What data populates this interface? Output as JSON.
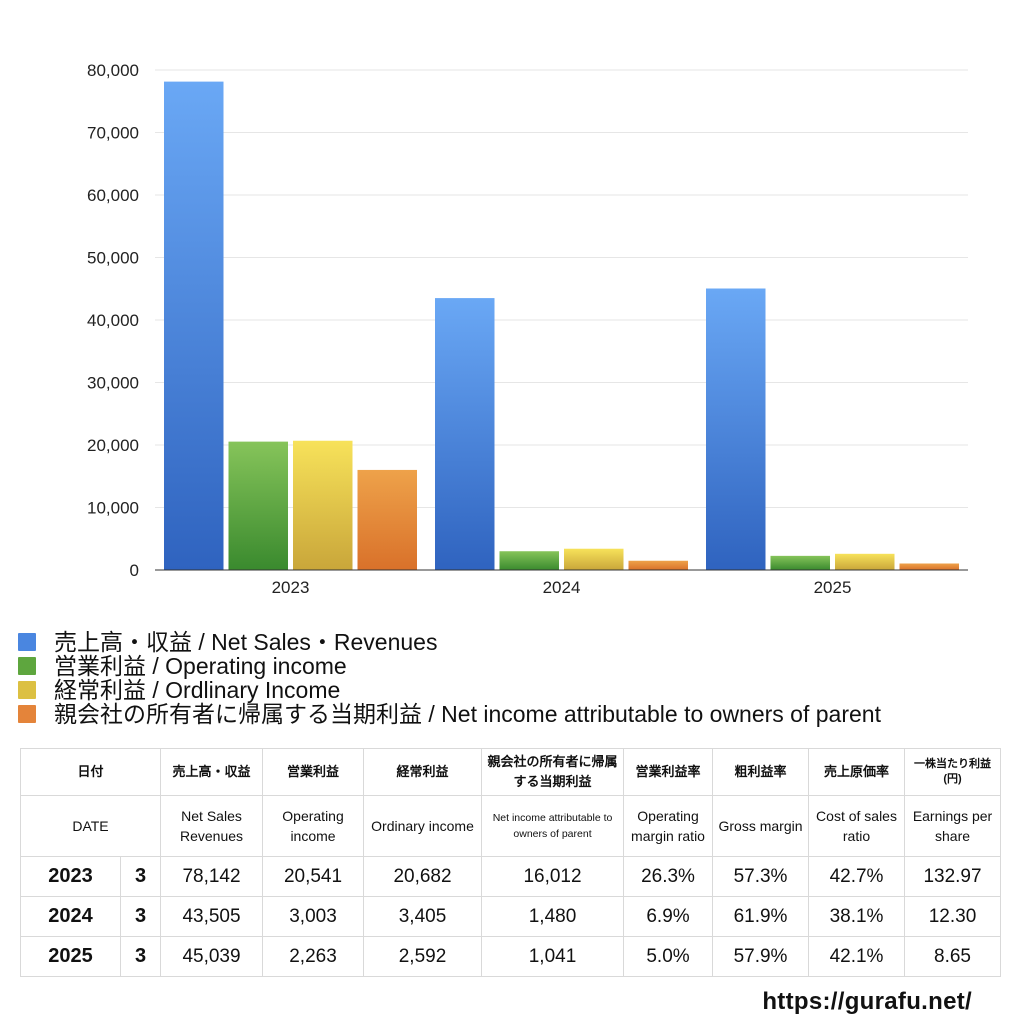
{
  "chart_data": {
    "type": "bar",
    "categories": [
      "2023",
      "2024",
      "2025"
    ],
    "series": [
      {
        "name": "売上高・収益 / Net Sales・Revenues",
        "values": [
          78142,
          43505,
          45039
        ],
        "color_top": "#6aa8f5",
        "color_bottom": "#2f63bf"
      },
      {
        "name": "営業利益 / Operating income",
        "values": [
          20541,
          3003,
          2263
        ],
        "color_top": "#86c45a",
        "color_bottom": "#3a8a2e"
      },
      {
        "name": "経常利益 / Ordlinary Income",
        "values": [
          20682,
          3405,
          2592
        ],
        "color_top": "#f7e25a",
        "color_bottom": "#c9a63a"
      },
      {
        "name": "親会社の所有者に帰属する当期利益 / Net income attributable to owners of parent",
        "values": [
          16012,
          1480,
          1041
        ],
        "color_top": "#eea24a",
        "color_bottom": "#d9712a"
      }
    ],
    "ylim": [
      0,
      80000
    ],
    "yticks": [
      0,
      10000,
      20000,
      30000,
      40000,
      50000,
      60000,
      70000,
      80000
    ],
    "ytick_labels": [
      "0",
      "10,000",
      "20,000",
      "30,000",
      "40,000",
      "50,000",
      "60,000",
      "70,000",
      "80,000"
    ],
    "grid": true,
    "legend_position": "bottom-left"
  },
  "legend": [
    {
      "label": "売上高・収益 / Net Sales・Revenues",
      "color": "#4a86e0"
    },
    {
      "label": "営業利益 / Operating income",
      "color": "#5ea63e"
    },
    {
      "label": "経常利益 / Ordlinary Income",
      "color": "#dcc042"
    },
    {
      "label": "親会社の所有者に帰属する当期利益 / Net income attributable to owners of parent",
      "color": "#e4843a"
    }
  ],
  "table": {
    "headers_ja": [
      "日付",
      "売上高・収益",
      "営業利益",
      "経常利益",
      "親会社の所有者に帰属する当期利益",
      "営業利益率",
      "粗利益率",
      "売上原価率",
      "一株当たり利益(円)"
    ],
    "headers_en": [
      "DATE",
      "Net Sales Revenues",
      "Operating income",
      "Ordinary income",
      "Net income attributable to owners of parent",
      "Operating margin ratio",
      "Gross margin",
      "Cost of sales ratio",
      "Earnings per share"
    ],
    "rows": [
      {
        "year": "2023",
        "month": "3",
        "cells": [
          "78,142",
          "20,541",
          "20,682",
          "16,012",
          "26.3%",
          "57.3%",
          "42.7%",
          "132.97"
        ]
      },
      {
        "year": "2024",
        "month": "3",
        "cells": [
          "43,505",
          "3,003",
          "3,405",
          "1,480",
          "6.9%",
          "61.9%",
          "38.1%",
          "12.30"
        ]
      },
      {
        "year": "2025",
        "month": "3",
        "cells": [
          "45,039",
          "2,263",
          "2,592",
          "1,041",
          "5.0%",
          "57.9%",
          "42.1%",
          "8.65"
        ]
      }
    ]
  },
  "credit": "https://gurafu.net/"
}
